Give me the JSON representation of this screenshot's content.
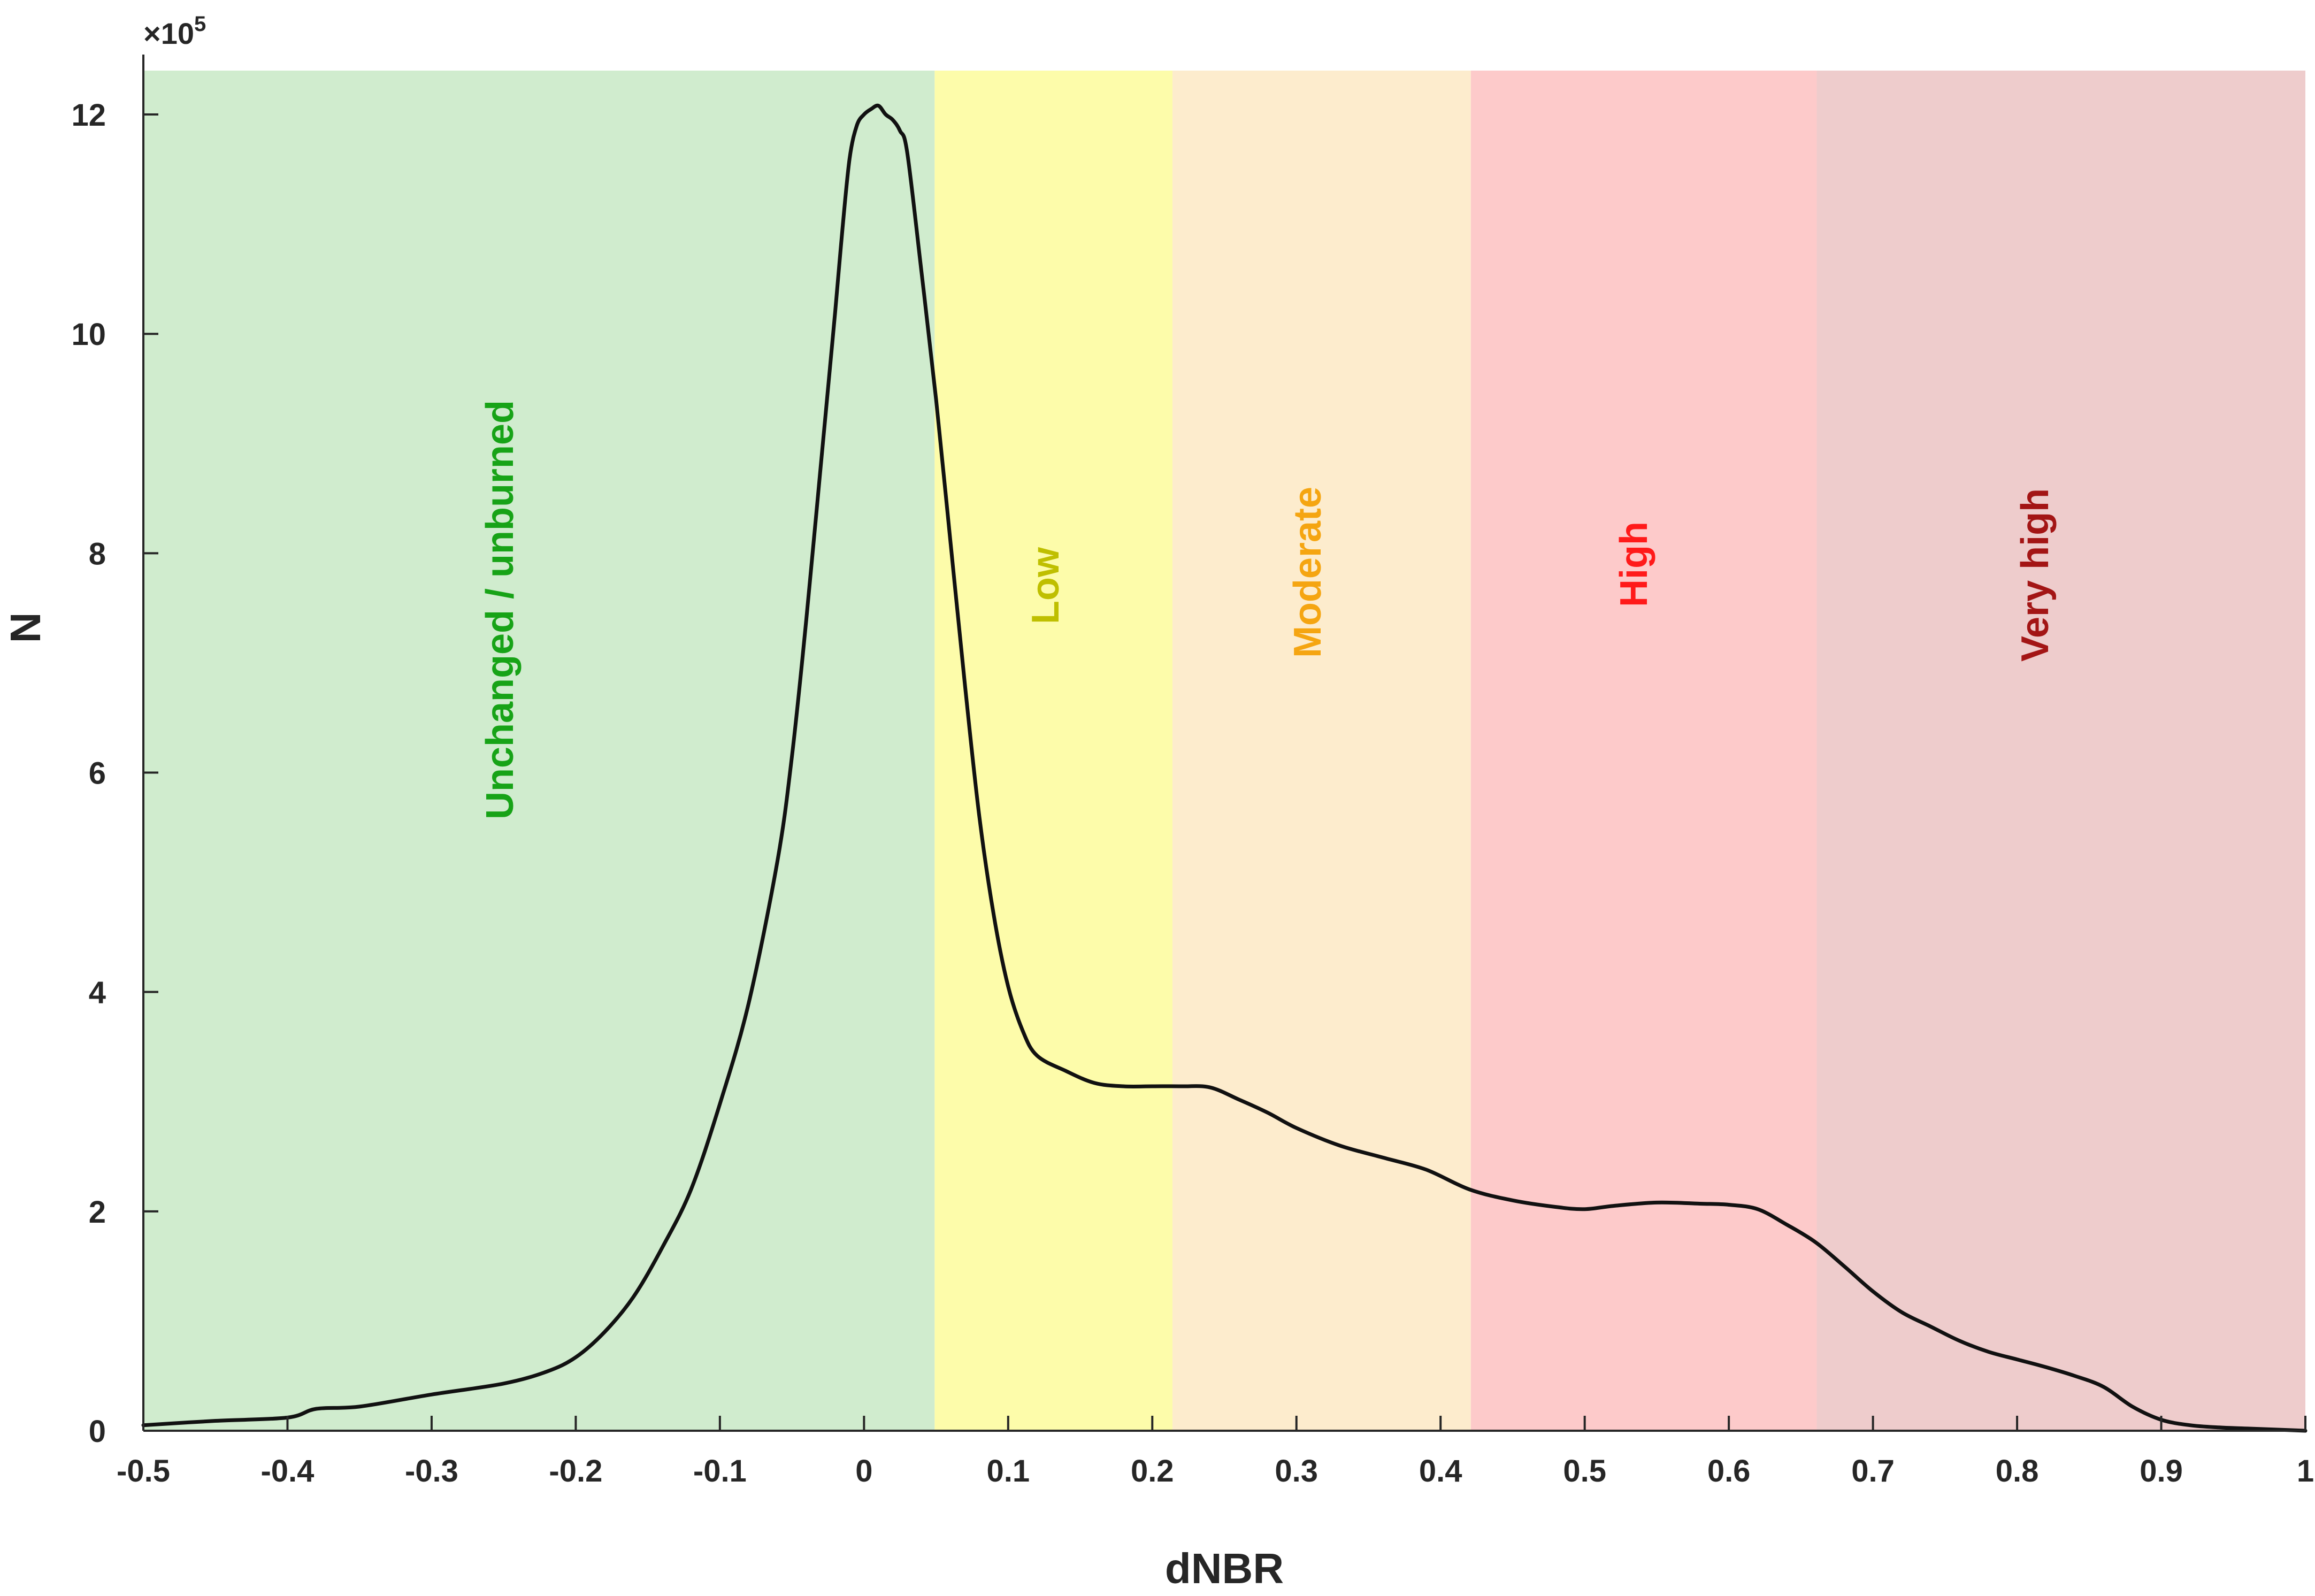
{
  "chart_data": {
    "type": "area",
    "xlabel": "dNBR",
    "ylabel": "N",
    "y_exponent_label": "×10",
    "y_exponent_power": "5",
    "xlim": [
      -0.5,
      1.0
    ],
    "ylim": [
      0,
      12.4
    ],
    "y_units": "×10^5",
    "grid": false,
    "x_ticks": [
      "-0.5",
      "-0.4",
      "-0.3",
      "-0.2",
      "-0.1",
      "0",
      "0.1",
      "0.2",
      "0.3",
      "0.4",
      "0.5",
      "0.6",
      "0.7",
      "0.8",
      "0.9",
      "1"
    ],
    "x_tick_values": [
      -0.5,
      -0.4,
      -0.3,
      -0.2,
      -0.1,
      0,
      0.1,
      0.2,
      0.3,
      0.4,
      0.5,
      0.6,
      0.7,
      0.8,
      0.9,
      1.0
    ],
    "y_ticks": [
      "0",
      "2",
      "4",
      "6",
      "8",
      "10",
      "12"
    ],
    "y_tick_values": [
      0,
      2,
      4,
      6,
      8,
      10,
      12
    ],
    "bands": [
      {
        "label": "Unchanged / unburned",
        "from": -0.5,
        "to": 0.049,
        "fill": "#d0ecce",
        "text_color": "#17a317"
      },
      {
        "label": "Low",
        "from": 0.049,
        "to": 0.214,
        "fill": "#fdfcaa",
        "text_color": "#bfbf00"
      },
      {
        "label": "Moderate",
        "from": 0.214,
        "to": 0.421,
        "fill": "#fdeccd",
        "text_color": "#f5a511"
      },
      {
        "label": "High",
        "from": 0.421,
        "to": 0.661,
        "fill": "#fdcaca",
        "text_color": "#ff1a1a"
      },
      {
        "label": "Very high",
        "from": 0.661,
        "to": 1.0,
        "fill": "#eecccc",
        "text_color": "#a31515"
      }
    ],
    "series": [
      {
        "line_color": "#111111",
        "x": [
          -0.5,
          -0.45,
          -0.4,
          -0.38,
          -0.35,
          -0.3,
          -0.25,
          -0.22,
          -0.2,
          -0.18,
          -0.16,
          -0.14,
          -0.12,
          -0.1,
          -0.08,
          -0.06,
          -0.05,
          -0.04,
          -0.03,
          -0.02,
          -0.015,
          -0.01,
          -0.005,
          0.0,
          0.005,
          0.01,
          0.015,
          0.02,
          0.025,
          0.03,
          0.04,
          0.05,
          0.06,
          0.07,
          0.08,
          0.09,
          0.1,
          0.11,
          0.12,
          0.14,
          0.16,
          0.18,
          0.2,
          0.22,
          0.24,
          0.26,
          0.28,
          0.3,
          0.33,
          0.36,
          0.39,
          0.42,
          0.45,
          0.48,
          0.5,
          0.52,
          0.55,
          0.58,
          0.6,
          0.62,
          0.64,
          0.66,
          0.68,
          0.7,
          0.72,
          0.74,
          0.76,
          0.78,
          0.8,
          0.82,
          0.84,
          0.86,
          0.88,
          0.9,
          0.92,
          0.94,
          0.96,
          1.0
        ],
        "y": [
          0.05,
          0.09,
          0.12,
          0.2,
          0.22,
          0.33,
          0.43,
          0.54,
          0.67,
          0.9,
          1.22,
          1.67,
          2.2,
          2.98,
          3.9,
          5.2,
          6.15,
          7.4,
          8.8,
          10.2,
          10.95,
          11.6,
          11.9,
          12.0,
          12.05,
          12.08,
          12.0,
          11.95,
          11.85,
          11.65,
          10.55,
          9.4,
          8.1,
          6.8,
          5.6,
          4.7,
          4.05,
          3.65,
          3.42,
          3.28,
          3.17,
          3.14,
          3.14,
          3.14,
          3.13,
          3.02,
          2.9,
          2.76,
          2.6,
          2.49,
          2.38,
          2.2,
          2.1,
          2.04,
          2.02,
          2.05,
          2.08,
          2.07,
          2.06,
          2.02,
          1.88,
          1.72,
          1.5,
          1.27,
          1.08,
          0.95,
          0.82,
          0.72,
          0.65,
          0.58,
          0.5,
          0.4,
          0.22,
          0.1,
          0.05,
          0.03,
          0.02,
          0.0
        ]
      }
    ]
  }
}
